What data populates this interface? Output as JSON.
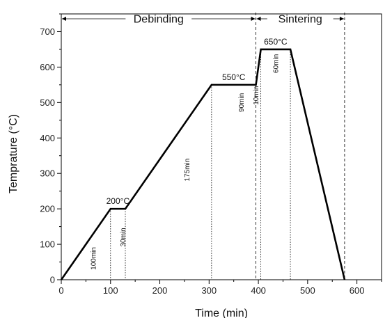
{
  "chart_data": {
    "type": "line",
    "xlabel": "Time (min)",
    "ylabel": "Temprature (°C)",
    "xlim": [
      0,
      650
    ],
    "ylim": [
      0,
      750
    ],
    "x_ticks": [
      0,
      100,
      200,
      300,
      400,
      500,
      600
    ],
    "y_ticks": [
      0,
      100,
      200,
      300,
      400,
      500,
      600,
      700
    ],
    "series": [
      {
        "x": [
          0,
          100,
          130,
          305,
          395,
          405,
          465,
          575
        ],
        "y": [
          0,
          200,
          200,
          550,
          550,
          650,
          650,
          0
        ]
      }
    ],
    "stages": [
      {
        "label": "Debinding",
        "x_start": 0,
        "x_end": 395
      },
      {
        "label": "Sintering",
        "x_start": 395,
        "x_end": 575
      }
    ],
    "temperature_labels": [
      {
        "text": "200°C",
        "x": 115,
        "y": 200
      },
      {
        "text": "550°C",
        "x": 350,
        "y": 550
      },
      {
        "text": "650°C",
        "x": 435,
        "y": 650
      }
    ],
    "duration_labels": [
      {
        "text": "100min",
        "x": 70,
        "y": 60
      },
      {
        "text": "30min",
        "x": 130,
        "y": 120
      },
      {
        "text": "175min",
        "x": 260,
        "y": 310
      },
      {
        "text": "90min",
        "x": 370,
        "y": 500
      },
      {
        "text": "10min",
        "x": 400,
        "y": 520
      },
      {
        "text": "60min",
        "x": 440,
        "y": 610
      }
    ],
    "dotted_verticals": [
      {
        "x": 100,
        "y": 200
      },
      {
        "x": 130,
        "y": 200
      },
      {
        "x": 305,
        "y": 550
      },
      {
        "x": 405,
        "y": 650
      },
      {
        "x": 465,
        "y": 650
      }
    ],
    "dashed_verticals": [
      395,
      575
    ],
    "grid": false
  }
}
